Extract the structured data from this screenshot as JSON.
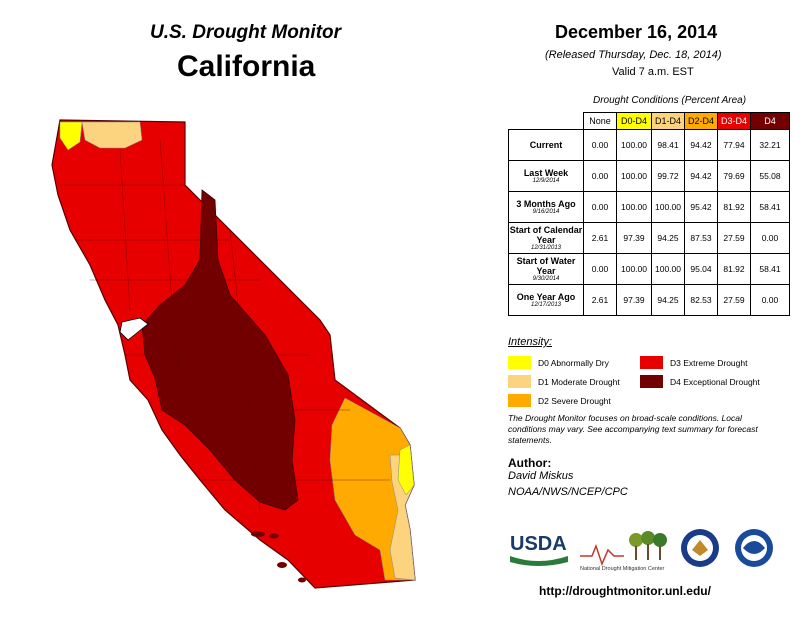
{
  "header": {
    "monitor_title": "U.S. Drought Monitor",
    "state": "California",
    "date": "December 16, 2014",
    "released": "(Released Thursday, Dec. 18, 2014)",
    "valid": "Valid 7 a.m. EST"
  },
  "table": {
    "caption": "Drought Conditions (Percent Area)",
    "columns": [
      {
        "label": "None",
        "color": "#ffffff"
      },
      {
        "label": "D0-D4",
        "color": "#ffff00"
      },
      {
        "label": "D1-D4",
        "color": "#fcd37f"
      },
      {
        "label": "D2-D4",
        "color": "#ffaa00"
      },
      {
        "label": "D3-D4",
        "color": "#e60000"
      },
      {
        "label": "D4",
        "color": "#730000"
      }
    ],
    "rows": [
      {
        "label": "Current",
        "sub": "",
        "values": [
          "0.00",
          "100.00",
          "98.41",
          "94.42",
          "77.94",
          "32.21"
        ]
      },
      {
        "label": "Last Week",
        "sub": "12/9/2014",
        "values": [
          "0.00",
          "100.00",
          "99.72",
          "94.42",
          "79.69",
          "55.08"
        ]
      },
      {
        "label": "3 Months Ago",
        "sub": "9/16/2014",
        "values": [
          "0.00",
          "100.00",
          "100.00",
          "95.42",
          "81.92",
          "58.41"
        ]
      },
      {
        "label": "Start of Calendar Year",
        "sub": "12/31/2013",
        "values": [
          "2.61",
          "97.39",
          "94.25",
          "87.53",
          "27.59",
          "0.00"
        ]
      },
      {
        "label": "Start of Water Year",
        "sub": "9/30/2014",
        "values": [
          "0.00",
          "100.00",
          "100.00",
          "95.04",
          "81.92",
          "58.41"
        ]
      },
      {
        "label": "One Year Ago",
        "sub": "12/17/2013",
        "values": [
          "2.61",
          "97.39",
          "94.25",
          "82.53",
          "27.59",
          "0.00"
        ]
      }
    ]
  },
  "legend": {
    "title": "Intensity:",
    "items": [
      {
        "label": "D0 Abnormally Dry",
        "color": "#ffff00"
      },
      {
        "label": "D1 Moderate Drought",
        "color": "#fcd37f"
      },
      {
        "label": "D2 Severe Drought",
        "color": "#ffaa00"
      },
      {
        "label": "D3 Extreme Drought",
        "color": "#e60000"
      },
      {
        "label": "D4 Exceptional Drought",
        "color": "#730000"
      }
    ]
  },
  "note": "The Drought Monitor focuses on broad-scale conditions. Local conditions may vary. See accompanying text summary for forecast statements.",
  "author": {
    "label": "Author:",
    "name": "David Miskus",
    "org": "NOAA/NWS/NCEP/CPC"
  },
  "logos": {
    "usda": "USDA",
    "ndmc": "National Drought Mitigation Center"
  },
  "url": "http://droughtmonitor.unl.edu/",
  "icons": [
    "usda-logo-icon",
    "ndmc-logo-icon",
    "doc-seal-icon",
    "noaa-logo-icon"
  ]
}
